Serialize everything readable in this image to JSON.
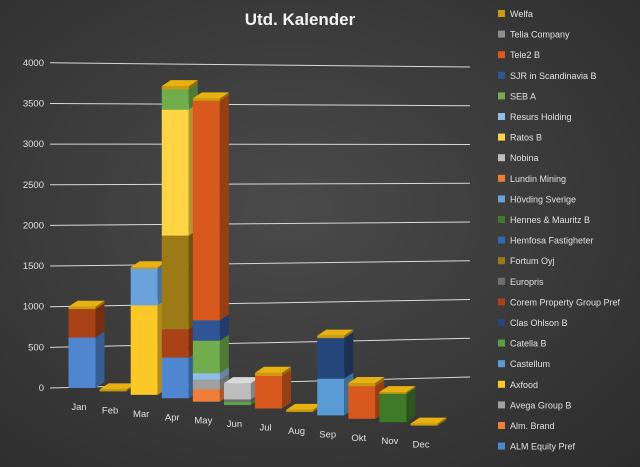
{
  "chart_data": {
    "type": "bar",
    "stacked": true,
    "three_d": true,
    "title": "Utd. Kalender",
    "xlabel": "",
    "ylabel": "",
    "ylim": [
      0,
      4000
    ],
    "yticks": [
      "0",
      "500",
      "1000",
      "1500",
      "2000",
      "2500",
      "3000",
      "3500",
      "4000"
    ],
    "categories": [
      "Jan",
      "Feb",
      "Mar",
      "Apr",
      "May",
      "Jun",
      "Jul",
      "Aug",
      "Sep",
      "Okt",
      "Nov",
      "Dec"
    ],
    "grid": true,
    "legend_position": "right",
    "series": [
      {
        "name": "ALM Equity Pref",
        "color": "#4f86cf",
        "values": [
          620,
          0,
          0,
          500,
          0,
          0,
          0,
          0,
          0,
          0,
          0,
          0
        ]
      },
      {
        "name": "Alm. Brand",
        "color": "#f07f3a",
        "values": [
          0,
          0,
          0,
          0,
          150,
          0,
          0,
          0,
          0,
          0,
          0,
          0
        ]
      },
      {
        "name": "Avega Group B",
        "color": "#a0a0a0",
        "values": [
          0,
          0,
          0,
          0,
          120,
          0,
          0,
          0,
          0,
          0,
          0,
          0
        ]
      },
      {
        "name": "Axfood",
        "color": "#fbc828",
        "values": [
          0,
          0,
          1100,
          0,
          0,
          0,
          0,
          0,
          0,
          0,
          0,
          0
        ]
      },
      {
        "name": "Castellum",
        "color": "#5b9bd5",
        "values": [
          0,
          0,
          0,
          0,
          0,
          0,
          0,
          0,
          450,
          0,
          0,
          0
        ]
      },
      {
        "name": "Catella B",
        "color": "#5ca043",
        "values": [
          0,
          0,
          0,
          0,
          0,
          40,
          0,
          0,
          0,
          0,
          0,
          0
        ]
      },
      {
        "name": "Clas Ohlson B",
        "color": "#26477a",
        "values": [
          0,
          0,
          0,
          0,
          0,
          0,
          0,
          0,
          500,
          0,
          0,
          0
        ]
      },
      {
        "name": "Corem Property Group Pref",
        "color": "#a94217",
        "values": [
          350,
          0,
          0,
          350,
          0,
          0,
          0,
          0,
          0,
          0,
          0,
          0
        ]
      },
      {
        "name": "Europris",
        "color": "#6e6e6e",
        "values": [
          0,
          0,
          0,
          0,
          0,
          30,
          0,
          0,
          0,
          0,
          0,
          0
        ]
      },
      {
        "name": "Fortum Oyj",
        "color": "#9c7a18",
        "values": [
          0,
          0,
          0,
          1150,
          0,
          0,
          0,
          0,
          0,
          0,
          0,
          0
        ]
      },
      {
        "name": "Hemfosa Fastigheter",
        "color": "#2e6ab4",
        "values": [
          0,
          0,
          0,
          0,
          0,
          0,
          0,
          0,
          0,
          0,
          0,
          0
        ]
      },
      {
        "name": "Hennes & Mauritz B",
        "color": "#3f7a29",
        "values": [
          0,
          0,
          0,
          0,
          0,
          0,
          0,
          0,
          0,
          0,
          350,
          0
        ]
      },
      {
        "name": "Hövding Sverige",
        "color": "#6aa2dc",
        "values": [
          0,
          0,
          450,
          0,
          0,
          0,
          0,
          0,
          0,
          0,
          0,
          0
        ]
      },
      {
        "name": "Lundin Mining",
        "color": "#ed7d31",
        "values": [
          0,
          0,
          0,
          0,
          0,
          0,
          0,
          0,
          0,
          0,
          0,
          0
        ]
      },
      {
        "name": "Nobina",
        "color": "#bdbdbd",
        "values": [
          0,
          0,
          0,
          0,
          0,
          200,
          0,
          0,
          0,
          0,
          0,
          0
        ]
      },
      {
        "name": "Ratos B",
        "color": "#ffd546",
        "values": [
          0,
          0,
          0,
          1550,
          0,
          0,
          0,
          0,
          0,
          0,
          0,
          0
        ]
      },
      {
        "name": "Resurs Holding",
        "color": "#8fbde8",
        "values": [
          0,
          0,
          0,
          0,
          80,
          0,
          0,
          0,
          0,
          0,
          0,
          0
        ]
      },
      {
        "name": "SEB A",
        "color": "#72ad4d",
        "values": [
          0,
          0,
          0,
          250,
          400,
          0,
          0,
          0,
          0,
          0,
          0,
          0
        ]
      },
      {
        "name": "SJR in Scandinavia B",
        "color": "#2f5597",
        "values": [
          0,
          0,
          0,
          0,
          250,
          0,
          0,
          0,
          0,
          0,
          0,
          0
        ]
      },
      {
        "name": "Tele2 B",
        "color": "#d9581e",
        "values": [
          0,
          0,
          0,
          0,
          2700,
          0,
          400,
          0,
          0,
          400,
          0,
          0
        ]
      },
      {
        "name": "Telia Company",
        "color": "#8f8f8f",
        "values": [
          0,
          0,
          0,
          0,
          0,
          0,
          0,
          0,
          0,
          0,
          0,
          0
        ]
      },
      {
        "name": "Welfa",
        "color": "#c99a10",
        "values": [
          30,
          25,
          20,
          40,
          30,
          0,
          40,
          25,
          30,
          40,
          20,
          25
        ]
      }
    ]
  }
}
